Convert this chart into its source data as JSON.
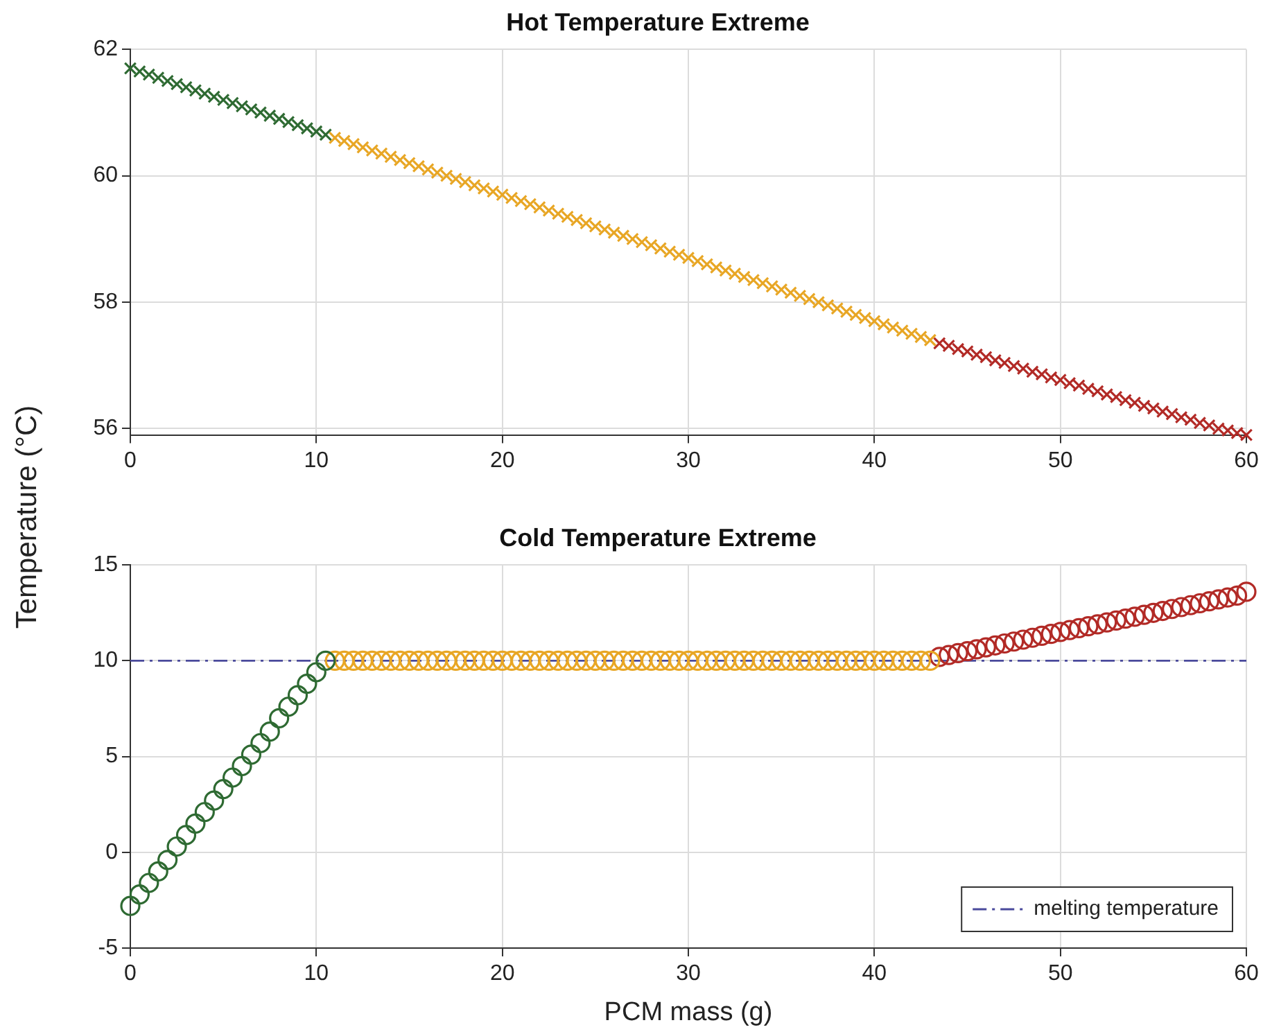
{
  "chart_data": [
    {
      "type": "scatter",
      "title": "Hot Temperature Extreme",
      "ylabel": "Temperature (°C)",
      "marker": "cross",
      "grid": true,
      "xlim": [
        0,
        60
      ],
      "xticks": [
        0,
        10,
        20,
        30,
        40,
        50,
        60
      ],
      "ylim": [
        55.9,
        62
      ],
      "yticks": [
        56,
        58,
        60,
        62
      ],
      "series": [
        {
          "color": "#2e6a32",
          "x": [
            0,
            0.5,
            1,
            1.5,
            2,
            2.5,
            3,
            3.5,
            4,
            4.5,
            5,
            5.5,
            6,
            6.5,
            7,
            7.5,
            8,
            8.5,
            9,
            9.5,
            10,
            10.5
          ],
          "values": [
            61.7,
            61.65,
            61.6,
            61.55,
            61.5,
            61.45,
            61.4,
            61.35,
            61.3,
            61.25,
            61.2,
            61.15,
            61.1,
            61.05,
            61.0,
            60.95,
            60.9,
            60.85,
            60.8,
            60.75,
            60.7,
            60.65
          ]
        },
        {
          "color": "#e8a624",
          "x": [
            11,
            11.5,
            12,
            12.5,
            13,
            13.5,
            14,
            14.5,
            15,
            15.5,
            16,
            16.5,
            17,
            17.5,
            18,
            18.5,
            19,
            19.5,
            20,
            20.5,
            21,
            21.5,
            22,
            22.5,
            23,
            23.5,
            24,
            24.5,
            25,
            25.5,
            26,
            26.5,
            27,
            27.5,
            28,
            28.5,
            29,
            29.5,
            30,
            30.5,
            31,
            31.5,
            32,
            32.5,
            33,
            33.5,
            34,
            34.5,
            35,
            35.5,
            36,
            36.5,
            37,
            37.5,
            38,
            38.5,
            39,
            39.5,
            40,
            40.5,
            41,
            41.5,
            42,
            42.5,
            43
          ],
          "values": [
            60.6,
            60.55,
            60.5,
            60.45,
            60.4,
            60.35,
            60.3,
            60.25,
            60.2,
            60.15,
            60.1,
            60.05,
            60.0,
            59.95,
            59.9,
            59.85,
            59.8,
            59.75,
            59.7,
            59.65,
            59.6,
            59.55,
            59.5,
            59.45,
            59.4,
            59.35,
            59.3,
            59.25,
            59.2,
            59.15,
            59.1,
            59.05,
            59.0,
            58.95,
            58.9,
            58.85,
            58.8,
            58.75,
            58.7,
            58.65,
            58.6,
            58.55,
            58.5,
            58.45,
            58.4,
            58.35,
            58.3,
            58.25,
            58.2,
            58.15,
            58.1,
            58.05,
            58.0,
            57.95,
            57.9,
            57.85,
            57.8,
            57.75,
            57.7,
            57.65,
            57.6,
            57.55,
            57.5,
            57.45,
            57.4
          ]
        },
        {
          "color": "#b22a26",
          "x": [
            43.5,
            44,
            44.5,
            45,
            45.5,
            46,
            46.5,
            47,
            47.5,
            48,
            48.5,
            49,
            49.5,
            50,
            50.5,
            51,
            51.5,
            52,
            52.5,
            53,
            53.5,
            54,
            54.5,
            55,
            55.5,
            56,
            56.5,
            57,
            57.5,
            58,
            58.5,
            59,
            59.5,
            60
          ],
          "values": [
            57.35,
            57.31,
            57.26,
            57.22,
            57.17,
            57.13,
            57.08,
            57.04,
            56.99,
            56.95,
            56.9,
            56.86,
            56.81,
            56.77,
            56.72,
            56.68,
            56.63,
            56.59,
            56.54,
            56.5,
            56.45,
            56.41,
            56.36,
            56.32,
            56.27,
            56.23,
            56.18,
            56.14,
            56.09,
            56.05,
            56.0,
            55.97,
            55.93,
            55.9
          ]
        }
      ]
    },
    {
      "type": "scatter",
      "title": "Cold Temperature Extreme",
      "xlabel": "PCM mass (g)",
      "marker": "circle",
      "grid": true,
      "legend": "bottom right",
      "xlim": [
        0,
        60
      ],
      "xticks": [
        0,
        10,
        20,
        30,
        40,
        50,
        60
      ],
      "ylim": [
        -5,
        15
      ],
      "yticks": [
        -5,
        0,
        5,
        10,
        15
      ],
      "ref_lines": [
        {
          "axis": "y",
          "value": 10,
          "label": "melting temperature",
          "color": "#4a4a9c",
          "line_style": "dashed"
        }
      ],
      "series": [
        {
          "color": "#2e6a32",
          "x": [
            0,
            0.5,
            1,
            1.5,
            2,
            2.5,
            3,
            3.5,
            4,
            4.5,
            5,
            5.5,
            6,
            6.5,
            7,
            7.5,
            8,
            8.5,
            9,
            9.5,
            10,
            10.5
          ],
          "values": [
            -2.8,
            -2.2,
            -1.6,
            -1,
            -0.4,
            0.3,
            0.9,
            1.5,
            2.1,
            2.7,
            3.3,
            3.9,
            4.5,
            5.1,
            5.7,
            6.3,
            7,
            7.6,
            8.2,
            8.8,
            9.4,
            10
          ]
        },
        {
          "color": "#e8a624",
          "x": [
            11,
            11.5,
            12,
            12.5,
            13,
            13.5,
            14,
            14.5,
            15,
            15.5,
            16,
            16.5,
            17,
            17.5,
            18,
            18.5,
            19,
            19.5,
            20,
            20.5,
            21,
            21.5,
            22,
            22.5,
            23,
            23.5,
            24,
            24.5,
            25,
            25.5,
            26,
            26.5,
            27,
            27.5,
            28,
            28.5,
            29,
            29.5,
            30,
            30.5,
            31,
            31.5,
            32,
            32.5,
            33,
            33.5,
            34,
            34.5,
            35,
            35.5,
            36,
            36.5,
            37,
            37.5,
            38,
            38.5,
            39,
            39.5,
            40,
            40.5,
            41,
            41.5,
            42,
            42.5,
            43
          ],
          "values": [
            10,
            10,
            10,
            10,
            10,
            10,
            10,
            10,
            10,
            10,
            10,
            10,
            10,
            10,
            10,
            10,
            10,
            10,
            10,
            10,
            10,
            10,
            10,
            10,
            10,
            10,
            10,
            10,
            10,
            10,
            10,
            10,
            10,
            10,
            10,
            10,
            10,
            10,
            10,
            10,
            10,
            10,
            10,
            10,
            10,
            10,
            10,
            10,
            10,
            10,
            10,
            10,
            10,
            10,
            10,
            10,
            10,
            10,
            10,
            10,
            10,
            10,
            10,
            10,
            10
          ]
        },
        {
          "color": "#b22a26",
          "x": [
            43.5,
            44,
            44.5,
            45,
            45.5,
            46,
            46.5,
            47,
            47.5,
            48,
            48.5,
            49,
            49.5,
            50,
            50.5,
            51,
            51.5,
            52,
            52.5,
            53,
            53.5,
            54,
            54.5,
            55,
            55.5,
            56,
            56.5,
            57,
            57.5,
            58,
            58.5,
            59,
            59.5,
            60
          ],
          "values": [
            10.2,
            10.3,
            10.4,
            10.5,
            10.6,
            10.7,
            10.8,
            10.9,
            11,
            11.1,
            11.2,
            11.3,
            11.4,
            11.5,
            11.6,
            11.7,
            11.8,
            11.9,
            12,
            12.1,
            12.2,
            12.3,
            12.4,
            12.5,
            12.6,
            12.7,
            12.8,
            12.9,
            13,
            13.1,
            13.2,
            13.3,
            13.4,
            13.6
          ]
        }
      ]
    }
  ]
}
